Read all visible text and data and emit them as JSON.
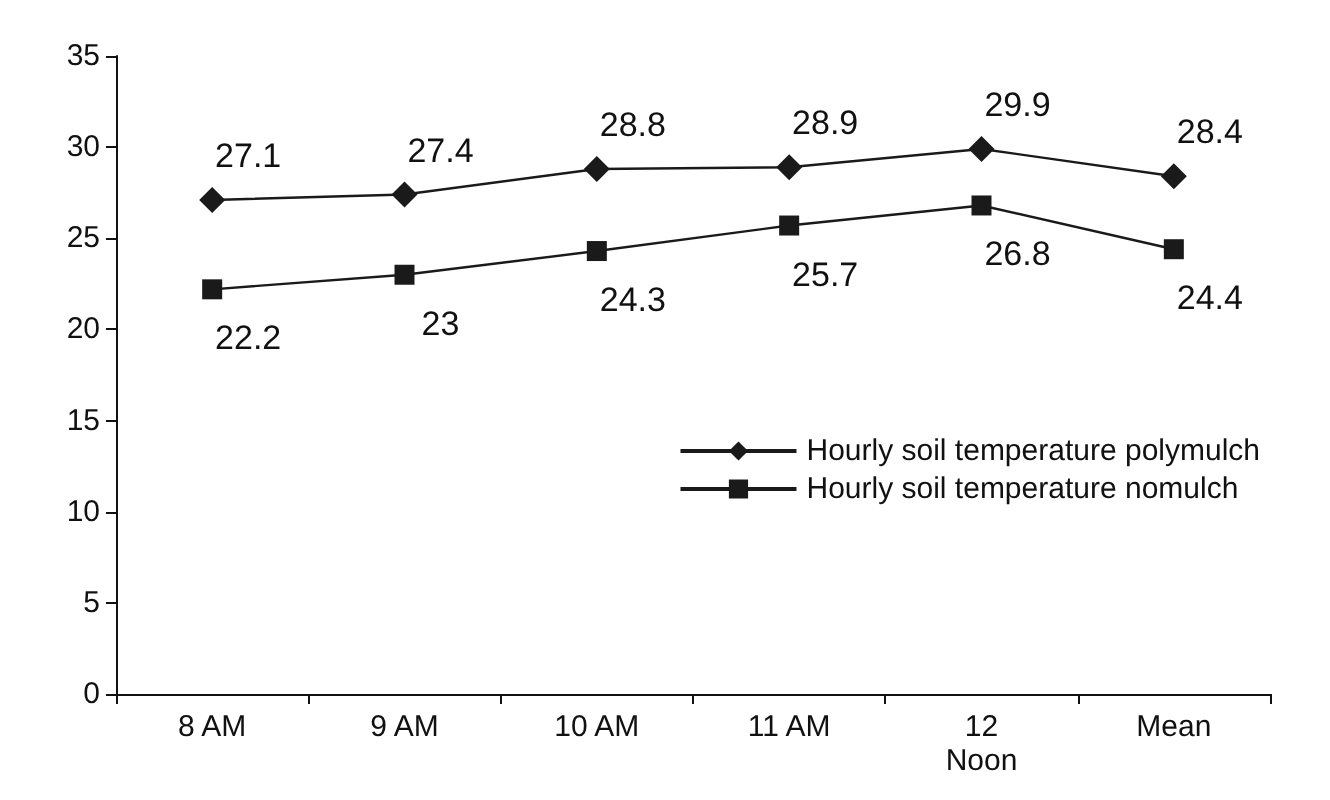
{
  "chart_data": {
    "type": "line",
    "categories": [
      "8 AM",
      "9 AM",
      "10 AM",
      "11 AM",
      "12\nNoon",
      "Mean"
    ],
    "series": [
      {
        "name": "Hourly soil temperature polymulch",
        "color": "#1a1a1a",
        "marker": "diamond",
        "values": [
          27.1,
          27.4,
          28.8,
          28.9,
          29.9,
          28.4
        ]
      },
      {
        "name": "Hourly soil temperature nomulch",
        "color": "#1a1a1a",
        "marker": "square",
        "values": [
          22.2,
          23,
          24.3,
          25.7,
          26.8,
          24.4
        ]
      }
    ],
    "ylim": [
      0,
      35
    ],
    "yticks": [
      0,
      5,
      10,
      15,
      20,
      25,
      30,
      35
    ],
    "grid": false,
    "legend": "bottom right",
    "data_labels": true,
    "line_style": "solid"
  }
}
